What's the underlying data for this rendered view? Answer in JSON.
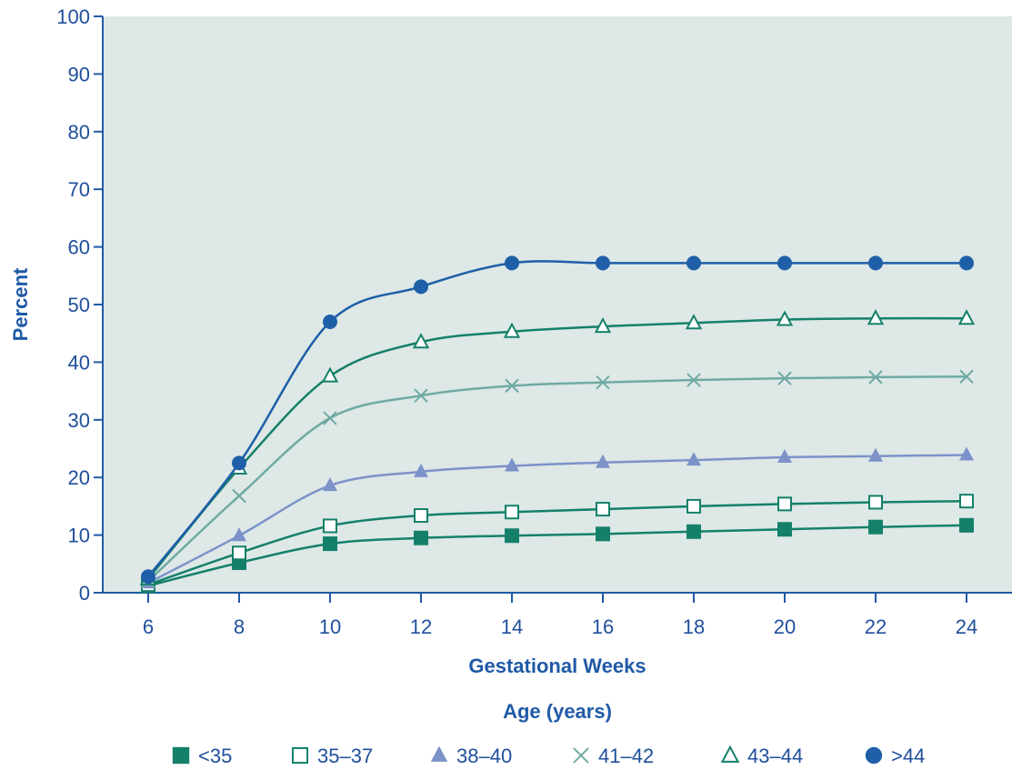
{
  "chart_data": {
    "type": "line",
    "title": "",
    "xlabel": "Gestational Weeks",
    "ylabel": "Percent",
    "legend_title": "Age (years)",
    "legend_position": "bottom",
    "grid": false,
    "xlim": [
      5,
      25
    ],
    "ylim": [
      0,
      100
    ],
    "x_ticks": [
      "6",
      "8",
      "10",
      "12",
      "14",
      "16",
      "18",
      "20",
      "22",
      "24"
    ],
    "y_ticks": [
      "0",
      "10",
      "20",
      "30",
      "40",
      "50",
      "60",
      "70",
      "80",
      "90",
      "100"
    ],
    "x": [
      6,
      8,
      10,
      12,
      14,
      16,
      18,
      20,
      22,
      24
    ],
    "plot_background": "#dde8e7",
    "series": [
      {
        "name": "<35",
        "marker": "square-filled",
        "color": "#15806a",
        "values": [
          1.2,
          5.2,
          8.5,
          9.5,
          9.9,
          10.2,
          10.6,
          11.0,
          11.4,
          11.7
        ]
      },
      {
        "name": "35–37",
        "marker": "square-open",
        "color": "#15806a",
        "values": [
          1.4,
          6.9,
          11.6,
          13.4,
          14.0,
          14.5,
          15.0,
          15.4,
          15.7,
          15.9
        ]
      },
      {
        "name": "38–40",
        "marker": "triangle-filled",
        "color": "#7d92c8",
        "values": [
          1.7,
          9.9,
          18.6,
          21.0,
          22.0,
          22.6,
          23.0,
          23.5,
          23.7,
          23.9
        ]
      },
      {
        "name": "41–42",
        "marker": "cross",
        "color": "#6faaa3",
        "values": [
          2.0,
          16.8,
          30.3,
          34.2,
          35.9,
          36.5,
          36.9,
          37.2,
          37.4,
          37.5
        ]
      },
      {
        "name": "43–44",
        "marker": "triangle-open",
        "color": "#15806a",
        "values": [
          2.4,
          21.6,
          37.6,
          43.5,
          45.3,
          46.2,
          46.8,
          47.4,
          47.6,
          47.6
        ]
      },
      {
        "name": ">44",
        "marker": "circle-filled",
        "color": "#1e5fa8",
        "values": [
          2.8,
          22.5,
          47.0,
          53.1,
          57.2,
          57.2,
          57.2,
          57.2,
          57.2,
          57.2
        ]
      }
    ]
  }
}
